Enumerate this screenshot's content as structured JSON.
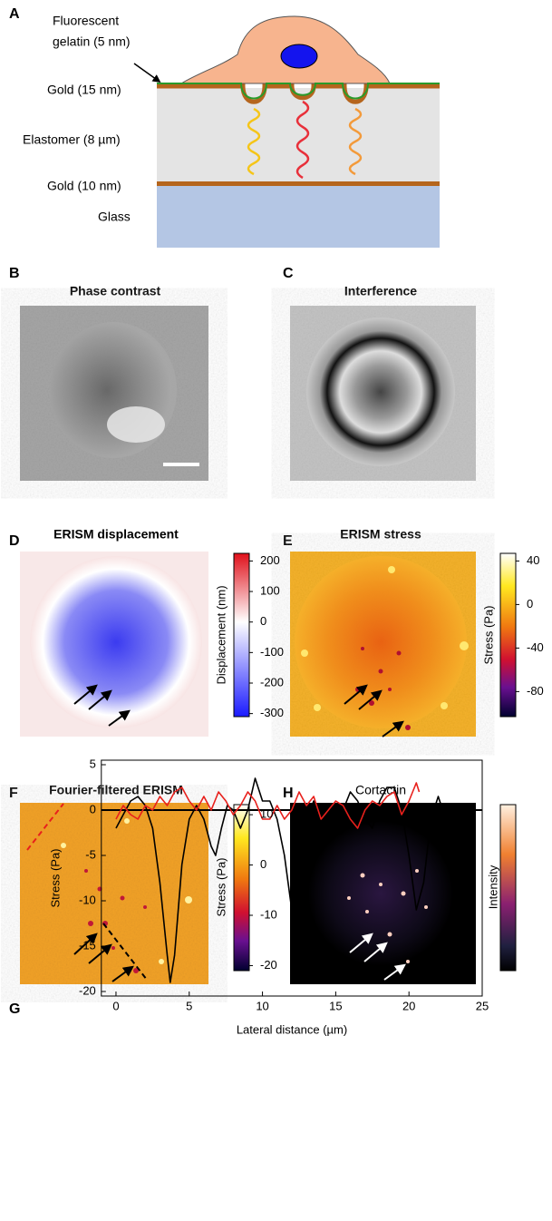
{
  "panels": {
    "A": {
      "label": "A",
      "gelatin": [
        "Fluorescent",
        "gelatin (5 nm)"
      ],
      "gold_top": "Gold (15 nm)",
      "elastomer": "Elastomer (8 µm)",
      "gold_bottom": "Gold (10 nm)",
      "glass": "Glass"
    },
    "B": {
      "label": "B",
      "title": "Phase contrast"
    },
    "C": {
      "label": "C",
      "title": "Interference"
    },
    "D": {
      "label": "D",
      "title": "ERISM displacement",
      "colorbar": {
        "label": "Displacement (nm)",
        "lim": [
          -310,
          225
        ],
        "ticks": [
          200,
          100,
          0,
          -100,
          -200,
          -300
        ]
      }
    },
    "E": {
      "label": "E",
      "title": "ERISM stress",
      "colorbar": {
        "label": "Stress (Pa)",
        "lim": [
          -103,
          47
        ],
        "ticks": [
          40,
          0,
          -40,
          -80
        ]
      }
    },
    "F": {
      "label": "F",
      "title": "Fourier-filtered ERISM",
      "colorbar": {
        "label": "Stress (Pa)",
        "lim": [
          -21,
          12
        ],
        "ticks": [
          10,
          0,
          -10,
          -20
        ]
      }
    },
    "H": {
      "label": "H",
      "title": "Cortactin",
      "colorbar": {
        "label": "Intensity"
      }
    }
  },
  "chart_data": {
    "type": "line",
    "label": "G",
    "x_label": "Lateral distance (µm)",
    "y_label": "Stress (Pa)",
    "xlim": [
      -1,
      25
    ],
    "ylim": [
      -20.5,
      5.5
    ],
    "xticks": [
      0,
      5,
      10,
      15,
      20,
      25
    ],
    "yticks": [
      5,
      0,
      -5,
      -10,
      -15,
      -20
    ],
    "series": [
      {
        "color": "#000000",
        "x": [
          0,
          0.5,
          1,
          1.5,
          2,
          2.5,
          3,
          3.5,
          3.7,
          4,
          4.5,
          5,
          5.5,
          6,
          6.5,
          6.8,
          7.2,
          7.6,
          8,
          8.5,
          9,
          9.5,
          10,
          10.5,
          11,
          11.5,
          12,
          12.2,
          12.5,
          13,
          13.5,
          14,
          14.5,
          15,
          15.5,
          16,
          16.5,
          17,
          17.5,
          18,
          18.5,
          19,
          19.5,
          20,
          20.5,
          21,
          21.5,
          22,
          22.5,
          22.8,
          23
        ],
        "values": [
          -2,
          -0.5,
          1,
          1.5,
          0.5,
          -2,
          -8,
          -16,
          -19,
          -16,
          -6,
          -1,
          0.5,
          -1,
          -4,
          -5,
          -2,
          0.5,
          0,
          -2,
          0,
          3.5,
          1,
          1,
          -1,
          -5,
          -11,
          -12.3,
          -10,
          -1,
          1,
          0,
          -2,
          -1.5,
          0,
          2,
          1,
          -1,
          -2,
          1,
          2.5,
          2.5,
          0,
          -5,
          -11,
          -8,
          -1,
          1.5,
          -1,
          -2.5,
          0.5
        ]
      },
      {
        "color": "#e8201c",
        "x": [
          0,
          0.5,
          1,
          1.5,
          2,
          2.5,
          3,
          3.5,
          4,
          4.5,
          5,
          5.5,
          6,
          6.5,
          7,
          7.5,
          8,
          8.5,
          9,
          9.5,
          10,
          10.5,
          11,
          11.5,
          12,
          12.5,
          13,
          13.5,
          14,
          14.5,
          15,
          15.5,
          16,
          16.5,
          17,
          17.5,
          18,
          18.5,
          19,
          19.5,
          20,
          20.5,
          20.7
        ],
        "values": [
          -1,
          0.5,
          -0.5,
          -1,
          0.5,
          0,
          1.5,
          0.5,
          2,
          2.5,
          1,
          0,
          1.5,
          0,
          2,
          1,
          -0.5,
          0.5,
          2,
          1,
          -1,
          -1,
          0.5,
          -1,
          0,
          2,
          0.5,
          1.5,
          -1,
          0,
          1,
          0.5,
          -1,
          -2,
          0,
          1,
          0.5,
          1.5,
          2,
          -0.5,
          1,
          3,
          2
        ]
      }
    ]
  }
}
